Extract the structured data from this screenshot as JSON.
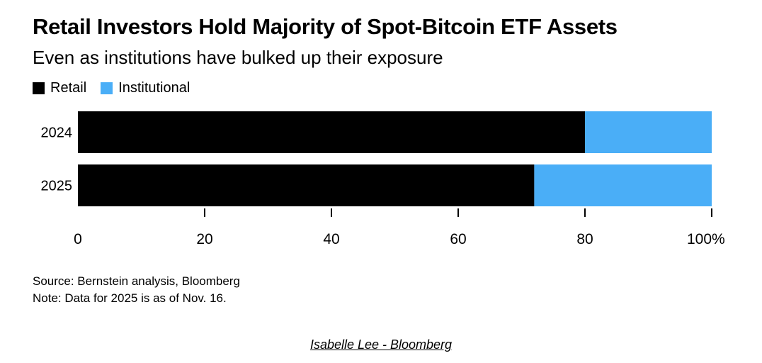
{
  "chart_data": {
    "type": "bar",
    "orientation": "horizontal",
    "stacked": true,
    "title": "Retail Investors Hold Majority of Spot-Bitcoin ETF Assets",
    "subtitle": "Even as institutions have bulked up their exposure",
    "categories": [
      "2024",
      "2025"
    ],
    "series": [
      {
        "name": "Retail",
        "color": "#000000",
        "values": [
          80,
          72
        ]
      },
      {
        "name": "Institutional",
        "color": "#4aaef7",
        "values": [
          20,
          28
        ]
      }
    ],
    "xlim": [
      0,
      100
    ],
    "xticks": [
      "0",
      "20",
      "40",
      "60",
      "80",
      "100%"
    ],
    "legend_position": "top-left",
    "grid": false
  },
  "footer": {
    "source": "Source: Bernstein analysis, Bloomberg",
    "note": "Note: Data for 2025 is as of Nov. 16.",
    "credit": "Isabelle Lee - Bloomberg"
  }
}
